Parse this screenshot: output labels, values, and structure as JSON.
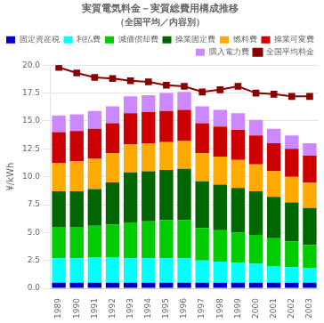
{
  "chart_data": {
    "type": "bar",
    "stacked": true,
    "title": "実質電気料金－実質総費用構成推移",
    "subtitle": "（全国平均／内容別）",
    "ylabel": "¥/kWh",
    "categories": [
      "1989",
      "1990",
      "1991",
      "1992",
      "1993",
      "1994",
      "1995",
      "1996",
      "1997",
      "1998",
      "1999",
      "2000",
      "2001",
      "2002",
      "2003"
    ],
    "series": [
      {
        "name": "固定資産税",
        "color": "#0000cc",
        "values": [
          0.5,
          0.5,
          0.5,
          0.5,
          0.5,
          0.5,
          0.5,
          0.5,
          0.5,
          0.5,
          0.5,
          0.5,
          0.5,
          0.5,
          0.5
        ]
      },
      {
        "name": "利払費",
        "color": "#00ffff",
        "values": [
          2.2,
          2.2,
          2.3,
          2.3,
          2.2,
          2.2,
          2.2,
          2.2,
          2.0,
          1.9,
          1.8,
          1.7,
          1.5,
          1.4,
          1.3
        ]
      },
      {
        "name": "減価償却費",
        "color": "#00cc00",
        "values": [
          2.8,
          2.8,
          2.8,
          2.9,
          3.2,
          3.3,
          3.4,
          3.4,
          2.9,
          2.8,
          2.7,
          2.6,
          2.5,
          2.3,
          2.1
        ]
      },
      {
        "name": "操業固定費",
        "color": "#006600",
        "values": [
          3.2,
          3.2,
          3.3,
          3.8,
          4.5,
          4.5,
          4.5,
          4.6,
          4.2,
          4.1,
          4.0,
          3.9,
          3.7,
          3.5,
          3.3
        ]
      },
      {
        "name": "燃料費",
        "color": "#ffaa00",
        "values": [
          2.5,
          2.7,
          2.7,
          2.6,
          2.5,
          2.5,
          2.5,
          2.5,
          2.5,
          2.5,
          2.5,
          2.4,
          2.3,
          2.3,
          2.3
        ]
      },
      {
        "name": "操業可変費",
        "color": "#cc0000",
        "values": [
          2.8,
          2.7,
          2.7,
          2.7,
          2.8,
          2.8,
          2.8,
          2.8,
          2.7,
          2.7,
          2.7,
          2.6,
          2.5,
          2.5,
          2.4
        ]
      },
      {
        "name": "購入電力費",
        "color": "#cc88ff",
        "values": [
          1.5,
          1.5,
          1.6,
          1.5,
          1.5,
          1.5,
          1.6,
          1.6,
          1.5,
          1.5,
          1.5,
          1.4,
          1.3,
          1.2,
          1.1
        ]
      },
      {
        "name": "全国平均料金",
        "type": "line",
        "color": "#880000",
        "marker": "square",
        "values": [
          19.8,
          19.3,
          18.9,
          18.8,
          18.6,
          18.5,
          18.2,
          18.1,
          17.6,
          17.8,
          18.1,
          17.5,
          17.4,
          17.2,
          17.2
        ]
      }
    ],
    "ylim": [
      0,
      20.0
    ],
    "yticks": [
      {
        "value": 0.0,
        "label": "0.0"
      },
      2.5,
      {
        "value": 5.0,
        "label": "5.0"
      },
      7.5,
      {
        "value": 10.0,
        "label": "10.0"
      },
      12.5,
      {
        "value": 15.0,
        "label": "15.0"
      },
      17.5,
      {
        "value": 20.0,
        "label": "20.0"
      }
    ],
    "grid": true,
    "legend": "upper right"
  }
}
